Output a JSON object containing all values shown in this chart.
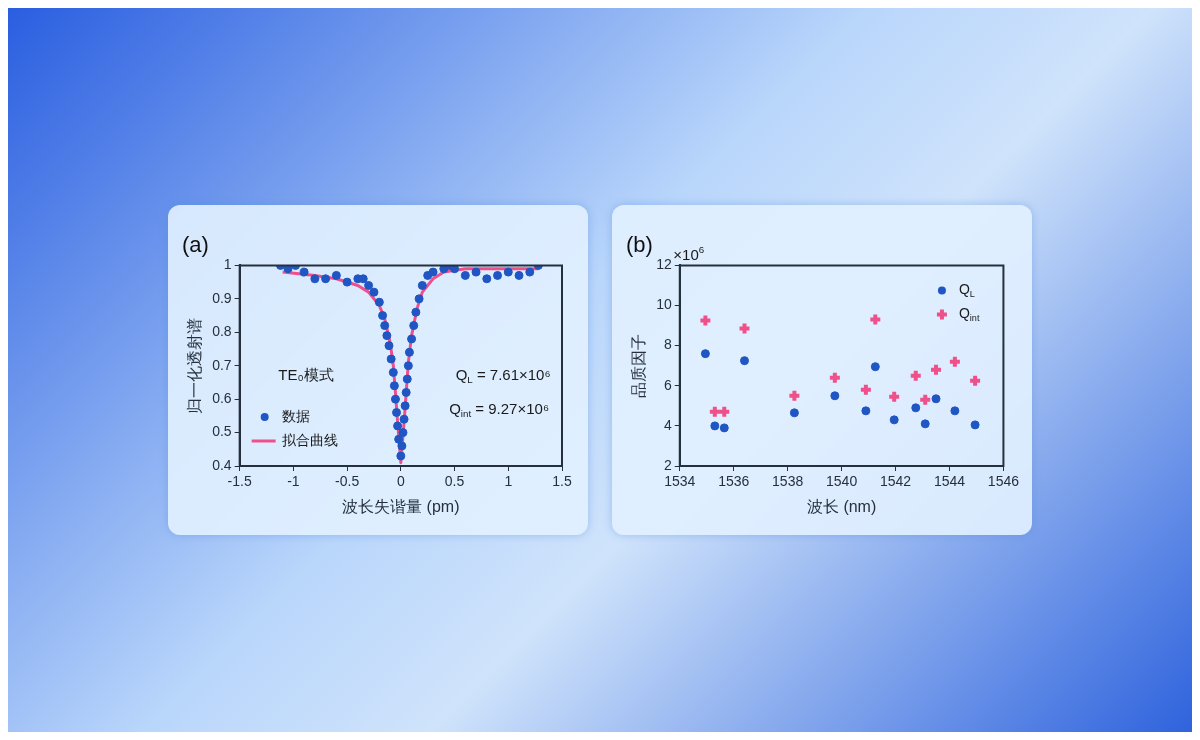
{
  "chart_data": [
    {
      "type": "scatter",
      "title": "(a)",
      "xlabel": "波长失谐量 (pm)",
      "ylabel": "归一化透射谱",
      "xlim": [
        -1.5,
        1.5
      ],
      "ylim": [
        0.4,
        1
      ],
      "xticks": [
        -1.5,
        -1,
        -0.5,
        0,
        0.5,
        1,
        1.5
      ],
      "yticks": [
        0.4,
        0.5,
        0.6,
        0.7,
        0.8,
        0.9,
        1
      ],
      "grid": false,
      "legend": "bottom left",
      "annotations": [
        "TE₀模式",
        "Q$_{L}$ = 7.61×10⁶",
        "Q$_{int}$ = 9.27×10⁶"
      ],
      "series": [
        {
          "name": "数据",
          "type": "scatter",
          "marker": "circle",
          "color": "#1f56c4",
          "x": [
            -1.12,
            -1.05,
            -0.98,
            -0.9,
            -0.8,
            -0.7,
            -0.6,
            -0.5,
            -0.4,
            -0.35,
            -0.3,
            -0.25,
            -0.2,
            -0.17,
            -0.15,
            -0.13,
            -0.11,
            -0.09,
            -0.07,
            -0.06,
            -0.05,
            -0.04,
            -0.03,
            -0.02,
            0,
            0.01,
            0.02,
            0.03,
            0.04,
            0.05,
            0.06,
            0.07,
            0.08,
            0.1,
            0.12,
            0.14,
            0.17,
            0.2,
            0.25,
            0.3,
            0.4,
            0.45,
            0.5,
            0.6,
            0.7,
            0.8,
            0.9,
            1.0,
            1.1,
            1.2,
            1.28
          ],
          "values": [
            1.0,
            0.99,
            1.0,
            0.98,
            0.96,
            0.96,
            0.97,
            0.95,
            0.96,
            0.96,
            0.94,
            0.92,
            0.89,
            0.85,
            0.82,
            0.79,
            0.76,
            0.72,
            0.68,
            0.64,
            0.6,
            0.56,
            0.52,
            0.48,
            0.43,
            0.46,
            0.5,
            0.54,
            0.58,
            0.62,
            0.66,
            0.7,
            0.74,
            0.78,
            0.82,
            0.86,
            0.9,
            0.94,
            0.97,
            0.98,
            0.99,
            1.0,
            0.99,
            0.97,
            0.98,
            0.96,
            0.97,
            0.98,
            0.97,
            0.98,
            1.0
          ]
        },
        {
          "name": "拟合曲线",
          "type": "line",
          "marker": "none",
          "color": "#f0508a",
          "x": [
            -1.1,
            -0.8,
            -0.6,
            -0.4,
            -0.3,
            -0.2,
            -0.15,
            -0.1,
            -0.07,
            -0.05,
            -0.03,
            0,
            0.03,
            0.05,
            0.07,
            0.1,
            0.15,
            0.2,
            0.3,
            0.4,
            0.6,
            1.0,
            1.28
          ],
          "values": [
            0.98,
            0.97,
            0.96,
            0.94,
            0.92,
            0.88,
            0.84,
            0.77,
            0.7,
            0.62,
            0.53,
            0.41,
            0.53,
            0.62,
            0.71,
            0.79,
            0.87,
            0.92,
            0.96,
            0.98,
            0.99,
            0.99,
            0.99
          ]
        }
      ]
    },
    {
      "type": "scatter",
      "title": "(b)",
      "xlabel": "波长 (nm)",
      "ylabel": "品质因子",
      "xlim": [
        1534,
        1546
      ],
      "ylim": [
        2,
        12
      ],
      "xticks": [
        1534,
        1536,
        1538,
        1540,
        1542,
        1544,
        1546
      ],
      "yticks": [
        2,
        4,
        6,
        8,
        10,
        12
      ],
      "grid": false,
      "legend": "top right",
      "annotations": [
        "×10$^{6}$"
      ],
      "series": [
        {
          "name": "Q$_{L}$",
          "type": "scatter",
          "marker": "circle",
          "color": "#1f56c4",
          "x": [
            1534.95,
            1535.3,
            1535.65,
            1536.4,
            1538.25,
            1539.75,
            1540.9,
            1541.25,
            1541.95,
            1542.75,
            1543.1,
            1543.5,
            1544.2,
            1544.95
          ],
          "values": [
            7.6,
            4.0,
            3.9,
            7.25,
            4.65,
            5.5,
            4.75,
            6.95,
            4.3,
            4.9,
            4.1,
            5.35,
            4.75,
            4.05
          ]
        },
        {
          "name": "Q$_{int}$",
          "type": "scatter",
          "marker": "cross",
          "color": "#f0508a",
          "x": [
            1534.95,
            1535.3,
            1535.65,
            1536.4,
            1538.25,
            1539.75,
            1540.9,
            1541.25,
            1541.95,
            1542.75,
            1543.1,
            1543.5,
            1544.2,
            1544.95
          ],
          "values": [
            9.25,
            4.7,
            4.7,
            8.85,
            5.5,
            6.4,
            5.8,
            9.3,
            5.45,
            6.5,
            5.3,
            6.8,
            7.2,
            6.25
          ]
        }
      ]
    }
  ]
}
